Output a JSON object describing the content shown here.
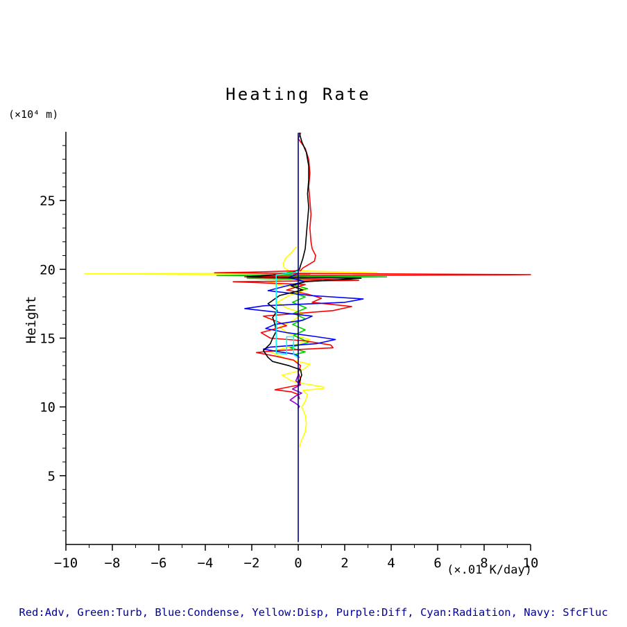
{
  "chart_data": {
    "type": "line",
    "title": "Heating Rate",
    "ylabel": "Height",
    "ylabel_units": "(×10⁴ m)",
    "xlabel": "(×.01 K/day)",
    "legend_text": "Red:Adv, Green:Turb, Blue:Condense, Yellow:Disp, Purple:Diff, Cyan:Radiation, Navy: SfcFluc",
    "legend_color": "#000099",
    "xlim": [
      -10,
      10
    ],
    "ylim": [
      0,
      30
    ],
    "xticks_major": [
      -10,
      -8,
      -6,
      -4,
      -2,
      0,
      2,
      4,
      6,
      8,
      10
    ],
    "xtick_labels": [
      "−10",
      "−8",
      "−6",
      "−4",
      "−2",
      "0",
      "2",
      "4",
      "6",
      "8",
      "10"
    ],
    "xticks_minor_step": 1,
    "yticks_major": [
      5,
      10,
      15,
      20,
      25
    ],
    "ytick_labels": [
      "5",
      "10",
      "15",
      "20",
      "25"
    ],
    "yticks_minor_step": 1,
    "grid": false,
    "legend_position": "bottom",
    "axes_drawn": [
      "left",
      "bottom"
    ],
    "series": [
      {
        "id": "disp",
        "name": "Disp",
        "color": "#ffff00",
        "points": [
          [
            -0.1,
            21.6
          ],
          [
            -0.3,
            21.2
          ],
          [
            -0.55,
            20.8
          ],
          [
            -0.65,
            20.4
          ],
          [
            -0.6,
            20.1
          ],
          [
            -0.4,
            19.9
          ],
          [
            3.4,
            19.75
          ],
          [
            -9.2,
            19.68
          ],
          [
            -1.5,
            19.6
          ],
          [
            0.4,
            19.5
          ],
          [
            -0.6,
            19.3
          ],
          [
            -1.3,
            19.0
          ],
          [
            -0.2,
            18.7
          ],
          [
            0.3,
            18.5
          ],
          [
            -0.4,
            18.1
          ],
          [
            -0.9,
            17.6
          ],
          [
            -0.5,
            17.2
          ],
          [
            0.2,
            16.8
          ],
          [
            -0.2,
            16.3
          ],
          [
            -0.8,
            15.8
          ],
          [
            -0.4,
            15.3
          ],
          [
            0.5,
            14.9
          ],
          [
            -0.3,
            14.4
          ],
          [
            -1.2,
            14.0
          ],
          [
            -0.5,
            13.5
          ],
          [
            0.5,
            13.1
          ],
          [
            0.2,
            12.7
          ],
          [
            -0.7,
            12.3
          ],
          [
            -0.3,
            11.9
          ],
          [
            0.2,
            11.7
          ],
          [
            1.1,
            11.45
          ],
          [
            1.1,
            11.35
          ],
          [
            0.2,
            11.2
          ],
          [
            0.4,
            10.9
          ],
          [
            0.3,
            10.4
          ],
          [
            0.15,
            10.0
          ],
          [
            0.3,
            9.4
          ],
          [
            0.35,
            8.8
          ],
          [
            0.3,
            8.2
          ],
          [
            0.2,
            7.8
          ],
          [
            0.1,
            7.4
          ],
          [
            0.05,
            7.1
          ]
        ]
      },
      {
        "id": "turb",
        "name": "Turb",
        "color": "#00cc00",
        "points": [
          [
            0,
            19.9
          ],
          [
            -0.5,
            19.75
          ],
          [
            0.5,
            19.65
          ],
          [
            -3.5,
            19.55
          ],
          [
            3.8,
            19.45
          ],
          [
            -2.2,
            19.35
          ],
          [
            1.0,
            19.25
          ],
          [
            0.3,
            19.1
          ],
          [
            -0.3,
            18.9
          ],
          [
            0.4,
            18.6
          ],
          [
            -0.3,
            18.3
          ],
          [
            0.3,
            18.0
          ],
          [
            -0.25,
            17.6
          ],
          [
            0.35,
            17.2
          ],
          [
            -0.2,
            16.8
          ],
          [
            0.3,
            16.4
          ],
          [
            -0.25,
            16.0
          ],
          [
            0.3,
            15.6
          ],
          [
            -0.2,
            15.2
          ],
          [
            0.45,
            14.7
          ],
          [
            -0.35,
            14.3
          ],
          [
            0.3,
            14.0
          ],
          [
            -0.15,
            13.8
          ],
          [
            0.05,
            13.6
          ]
        ]
      },
      {
        "id": "adv",
        "name": "Adv",
        "color": "#ff0000",
        "points": [
          [
            0.1,
            29.9
          ],
          [
            0.0,
            29.5
          ],
          [
            0.3,
            28.8
          ],
          [
            0.45,
            28.0
          ],
          [
            0.5,
            27.0
          ],
          [
            0.45,
            26.0
          ],
          [
            0.5,
            25.0
          ],
          [
            0.55,
            24.0
          ],
          [
            0.5,
            23.0
          ],
          [
            0.55,
            22.0
          ],
          [
            0.6,
            21.5
          ],
          [
            0.75,
            21.0
          ],
          [
            0.7,
            20.6
          ],
          [
            0.4,
            20.3
          ],
          [
            0.2,
            20.1
          ],
          [
            0.1,
            19.9
          ],
          [
            -2.0,
            19.8
          ],
          [
            -3.6,
            19.75
          ],
          [
            0.5,
            19.7
          ],
          [
            10.0,
            19.62
          ],
          [
            9.0,
            19.6
          ],
          [
            0.3,
            19.55
          ],
          [
            -2.3,
            19.45
          ],
          [
            2.6,
            19.2
          ],
          [
            -2.8,
            19.1
          ],
          [
            0.3,
            18.9
          ],
          [
            -0.5,
            18.5
          ],
          [
            0.4,
            18.2
          ],
          [
            1.0,
            17.9
          ],
          [
            0.6,
            17.6
          ],
          [
            2.3,
            17.3
          ],
          [
            1.5,
            17.0
          ],
          [
            -1.5,
            16.6
          ],
          [
            -0.9,
            16.2
          ],
          [
            -0.5,
            15.9
          ],
          [
            -1.6,
            15.4
          ],
          [
            -1.2,
            15.0
          ],
          [
            0.3,
            14.8
          ],
          [
            1.4,
            14.5
          ],
          [
            1.5,
            14.3
          ],
          [
            -0.9,
            14.1
          ],
          [
            -1.8,
            13.95
          ],
          [
            -1.0,
            13.7
          ],
          [
            -0.2,
            13.4
          ],
          [
            0.1,
            13.0
          ],
          [
            0.0,
            12.5
          ],
          [
            0.1,
            12.0
          ],
          [
            0.05,
            11.6
          ],
          [
            -1.0,
            11.25
          ],
          [
            -0.3,
            11.1
          ],
          [
            0.0,
            10.9
          ],
          [
            0.05,
            10.6
          ]
        ]
      },
      {
        "id": "condense",
        "name": "Condense",
        "color": "#0000ff",
        "points": [
          [
            0,
            19.7
          ],
          [
            -0.4,
            19.4
          ],
          [
            0.3,
            19.1
          ],
          [
            -0.5,
            18.8
          ],
          [
            -1.3,
            18.45
          ],
          [
            0.5,
            18.1
          ],
          [
            2.8,
            17.85
          ],
          [
            2.0,
            17.6
          ],
          [
            -1.5,
            17.35
          ],
          [
            -2.3,
            17.15
          ],
          [
            -1.0,
            16.9
          ],
          [
            0.6,
            16.6
          ],
          [
            0.2,
            16.3
          ],
          [
            -1.0,
            16.0
          ],
          [
            -1.4,
            15.7
          ],
          [
            -0.5,
            15.4
          ],
          [
            0.8,
            15.1
          ],
          [
            1.6,
            14.9
          ],
          [
            0.8,
            14.6
          ],
          [
            -1.2,
            14.35
          ],
          [
            -1.5,
            14.2
          ],
          [
            -0.8,
            14.0
          ],
          [
            -0.2,
            13.85
          ],
          [
            0,
            13.7
          ]
        ]
      },
      {
        "id": "total-black",
        "name": "(black line)",
        "color": "#000000",
        "points": [
          [
            0.05,
            29.9
          ],
          [
            0.15,
            29.3
          ],
          [
            0.35,
            28.5
          ],
          [
            0.45,
            27.5
          ],
          [
            0.45,
            26.5
          ],
          [
            0.4,
            25.5
          ],
          [
            0.45,
            24.5
          ],
          [
            0.4,
            23.5
          ],
          [
            0.35,
            22.5
          ],
          [
            0.3,
            21.5
          ],
          [
            0.2,
            20.8
          ],
          [
            0.1,
            20.3
          ],
          [
            0.05,
            20.0
          ],
          [
            -0.3,
            19.7
          ],
          [
            -2.2,
            19.45
          ],
          [
            2.7,
            19.35
          ],
          [
            0.3,
            19.1
          ],
          [
            -0.3,
            18.8
          ],
          [
            0.2,
            18.5
          ],
          [
            -0.8,
            18.1
          ],
          [
            -1.3,
            17.5
          ],
          [
            -0.9,
            17.0
          ],
          [
            -1.1,
            16.5
          ],
          [
            -1.0,
            16.0
          ],
          [
            -0.95,
            15.5
          ],
          [
            -1.1,
            15.0
          ],
          [
            -1.2,
            14.6
          ],
          [
            -1.5,
            14.1
          ],
          [
            -1.3,
            13.6
          ],
          [
            -1.1,
            13.3
          ],
          [
            -0.4,
            13.0
          ],
          [
            0.1,
            12.7
          ],
          [
            0.15,
            12.3
          ],
          [
            0.05,
            11.9
          ],
          [
            0.0,
            11.5
          ]
        ]
      },
      {
        "id": "diff",
        "name": "Diff",
        "color": "#9400d3",
        "points": [
          [
            0,
            12.3
          ],
          [
            -0.1,
            11.9
          ],
          [
            0.1,
            11.6
          ],
          [
            -0.25,
            11.3
          ],
          [
            0.15,
            11.0
          ],
          [
            -0.1,
            10.8
          ],
          [
            -0.35,
            10.5
          ],
          [
            -0.1,
            10.25
          ],
          [
            0.05,
            10.05
          ],
          [
            0,
            9.9
          ]
        ]
      },
      {
        "id": "radiation",
        "name": "Radiation",
        "color": "#00ffff",
        "points": [
          [
            0,
            19.9
          ],
          [
            -0.2,
            19.75
          ],
          [
            -0.95,
            19.6
          ],
          [
            -0.95,
            13.9
          ],
          [
            -0.5,
            13.85
          ],
          [
            -0.5,
            15.1
          ],
          [
            -0.2,
            15.1
          ],
          [
            -0.2,
            13.8
          ],
          [
            0,
            13.6
          ]
        ]
      },
      {
        "id": "sfcfluc",
        "name": "SfcFluc",
        "color": "#000080",
        "points": [
          [
            0,
            0.2
          ],
          [
            0,
            29.9
          ]
        ]
      }
    ]
  }
}
